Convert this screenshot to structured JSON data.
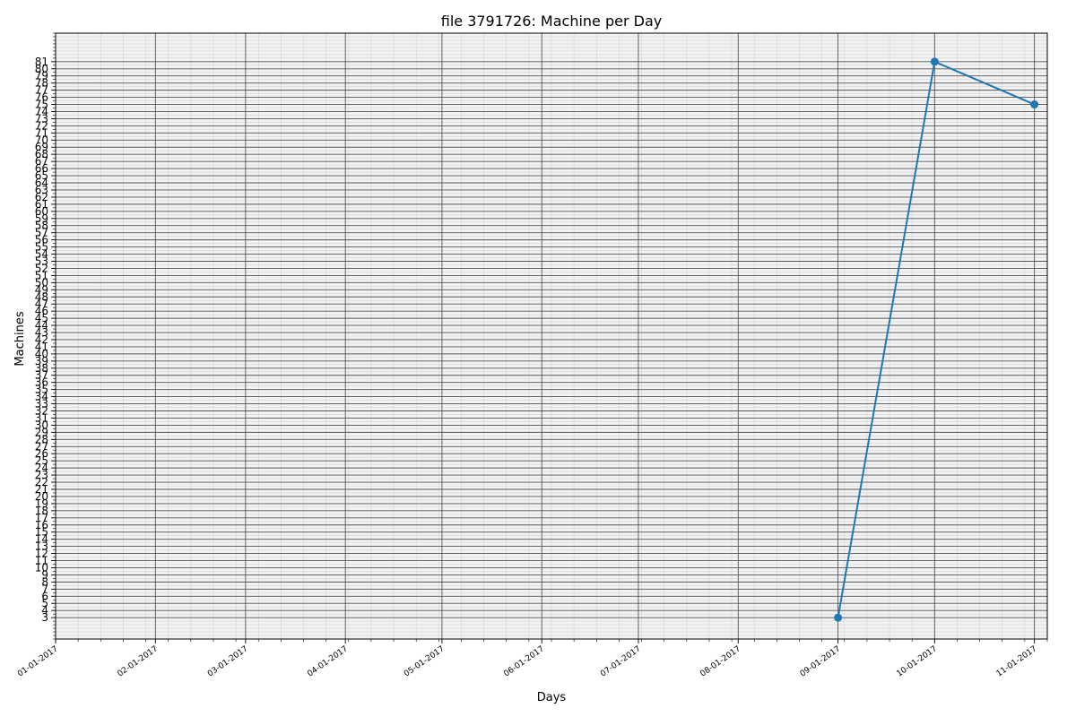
{
  "chart_data": {
    "type": "line",
    "title": "file 3791726: Machine per Day",
    "xlabel": "Days",
    "ylabel": "Machines",
    "x_tick_labels": [
      "01-01-2017",
      "02-01-2017",
      "03-01-2017",
      "04-01-2017",
      "05-01-2017",
      "06-01-2017",
      "07-01-2017",
      "08-01-2017",
      "09-01-2017",
      "10-01-2017",
      "11-01-2017"
    ],
    "x_dates": [
      "2017-01-01",
      "2017-02-01",
      "2017-03-01",
      "2017-04-01",
      "2017-05-01",
      "2017-06-01",
      "2017-07-01",
      "2017-08-01",
      "2017-09-01",
      "2017-10-01",
      "2017-11-01"
    ],
    "xlim": [
      "2017-01-01",
      "2017-11-05"
    ],
    "ylim": [
      0,
      85
    ],
    "y_ticks": [
      3,
      4,
      5,
      6,
      7,
      8,
      9,
      10,
      11,
      12,
      13,
      14,
      15,
      16,
      17,
      18,
      19,
      20,
      21,
      22,
      23,
      24,
      25,
      26,
      27,
      28,
      29,
      30,
      31,
      32,
      33,
      34,
      35,
      36,
      37,
      38,
      39,
      40,
      41,
      42,
      43,
      44,
      45,
      46,
      47,
      48,
      49,
      50,
      51,
      52,
      53,
      54,
      55,
      56,
      57,
      58,
      59,
      60,
      61,
      62,
      63,
      64,
      65,
      66,
      67,
      68,
      69,
      70,
      71,
      72,
      73,
      74,
      75,
      76,
      77,
      78,
      79,
      80,
      81
    ],
    "grid": true,
    "series": [
      {
        "color": "#1f77b4",
        "x": [
          "2017-09-01",
          "2017-10-01",
          "2017-11-01"
        ],
        "y": [
          3,
          81,
          75
        ]
      }
    ]
  }
}
